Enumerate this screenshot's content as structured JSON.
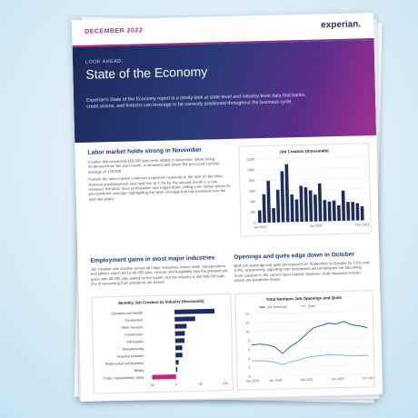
{
  "header": {
    "date": "DECEMBER 2022",
    "logo": "experian.",
    "kicker": "LOOK AHEAD:",
    "title": "State of the Economy",
    "intro": "Experian's State of the Economy report is a timely look at state-level and industry-level data that banks, credit unions, and fintechs can leverage to be correctly positioned throughout the business cycle."
  },
  "sections": [
    {
      "heading": "Labor market holds strong in November",
      "paragraphs": [
        "A better-than-expected 263,000 jobs were added in November. While hiring moderated from the prior month, it remained well above the pre-covid monthly average of 178,000.",
        "Overall, the labor market continues to perform resiliently in the face of rate hikes. National unemployment also held firm at 3.7% for the second month in a row. However, the labor force participation rate edged down, falling even further below its pre-pandemic average, highlighting the labor shortage that has persisted over the past two years."
      ]
    },
    {
      "heading": "Employment gains in most major industries",
      "paragraphs": [
        "Job creation was positive across all major industries, minus trade, transportation and utilities which fell by 49,000 jobs. Leisure and hospitality saw the greatest job gains with 88,000 jobs added on the month, but the industry is still 980,000 jobs shy of recovering from pandemic job losses."
      ]
    },
    {
      "heading": "Openings and quits edge down in October",
      "paragraphs": [
        "Both job openings and quits decreased from September to October by 3.5% and 0.8%, respectively, signaling both businesses and employees are becoming more cautious in the current labor market. However, both measures remain above pre-pandemic levels."
      ]
    }
  ],
  "charts": [
    {
      "type": "bar",
      "title": "Job Creation (thousands)",
      "color": "#1d2b5e",
      "categories": [
        "Jan 2021",
        null,
        null,
        null,
        null,
        null,
        null,
        null,
        null,
        null,
        null,
        null,
        "Jan 2022",
        null,
        null,
        null,
        null,
        null,
        null,
        null,
        null,
        null,
        "Nov 2022"
      ],
      "values": [
        233,
        536,
        785,
        269,
        614,
        962,
        1091,
        517,
        424,
        677,
        647,
        588,
        504,
        714,
        398,
        368,
        386,
        293,
        568,
        352,
        350,
        324,
        263
      ],
      "ylim": [
        0,
        1200
      ],
      "yticks": [
        0,
        200,
        400,
        600,
        800,
        1000,
        1200
      ],
      "grid": true
    },
    {
      "type": "hbar",
      "title": "Monthly Job Creation by Industry (thousands)",
      "color": "#1d2b5e",
      "negative_color": "#c0267a",
      "categories": [
        "Education and Health",
        "Government",
        "Other Services",
        "Construction",
        "Information",
        "Manufacturing",
        "Financial Activities",
        "Professional and Business",
        "Mining",
        "Trade, Transportation, Utility"
      ],
      "values": [
        82,
        42,
        24,
        20,
        19,
        14,
        14,
        6,
        3,
        -49
      ],
      "xlim": [
        -60,
        100
      ],
      "xticks": [
        -50,
        0,
        50,
        100
      ],
      "grid": false
    },
    {
      "type": "line",
      "title": "Total Nonfarm Job Openings and Quits",
      "categories": [
        "Jan 2019",
        null,
        null,
        "Jan 2020",
        null,
        null,
        null,
        "Jan 2021",
        null,
        null,
        null,
        "Jan 2022",
        null,
        null,
        null,
        "Oct 2022"
      ],
      "series": [
        {
          "name": "Job Openings",
          "color": "#1f4fa3",
          "values": [
            7,
            7.2,
            7,
            6.5,
            5,
            6.5,
            7.5,
            9,
            10.5,
            11,
            11.5,
            11.3,
            11.8,
            11,
            10.7,
            10.3
          ]
        },
        {
          "name": "Quits",
          "color": "#6db3e8",
          "values": [
            3.5,
            3.5,
            3.4,
            3,
            2.5,
            3.1,
            3.4,
            3.9,
            4.2,
            4.3,
            4.5,
            4.4,
            4.2,
            4.1,
            4.1,
            4.1
          ]
        }
      ],
      "ylim": [
        0,
        14
      ],
      "yticks": [
        0,
        2,
        4,
        6,
        8,
        10,
        12,
        14
      ],
      "grid": true
    }
  ]
}
